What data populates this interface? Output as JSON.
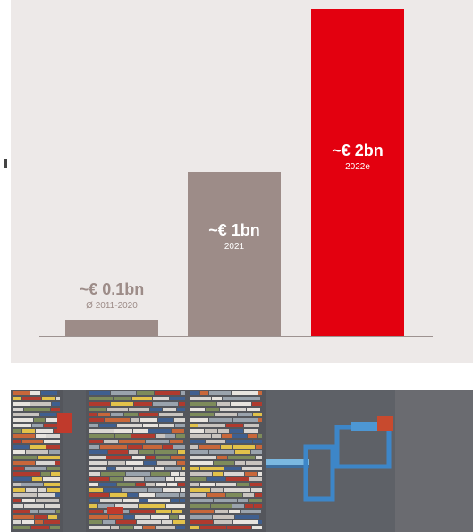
{
  "chart_data": {
    "type": "bar",
    "categories": [
      "Ø 2011-2020",
      "2021",
      "2022e"
    ],
    "values": [
      0.1,
      1,
      2
    ],
    "value_labels": [
      "~€ 0.1bn",
      "~€ 1bn",
      "~€ 2bn"
    ],
    "unit": "€ bn",
    "ylim": [
      0,
      2
    ],
    "grid": false,
    "colors": [
      "#9d8c88",
      "#9d8c88",
      "#e3000f"
    ],
    "label_colors": [
      "#9d8c88",
      "#ffffff",
      "#ffffff"
    ]
  },
  "image": {
    "subject": "aerial-view-container-port"
  }
}
